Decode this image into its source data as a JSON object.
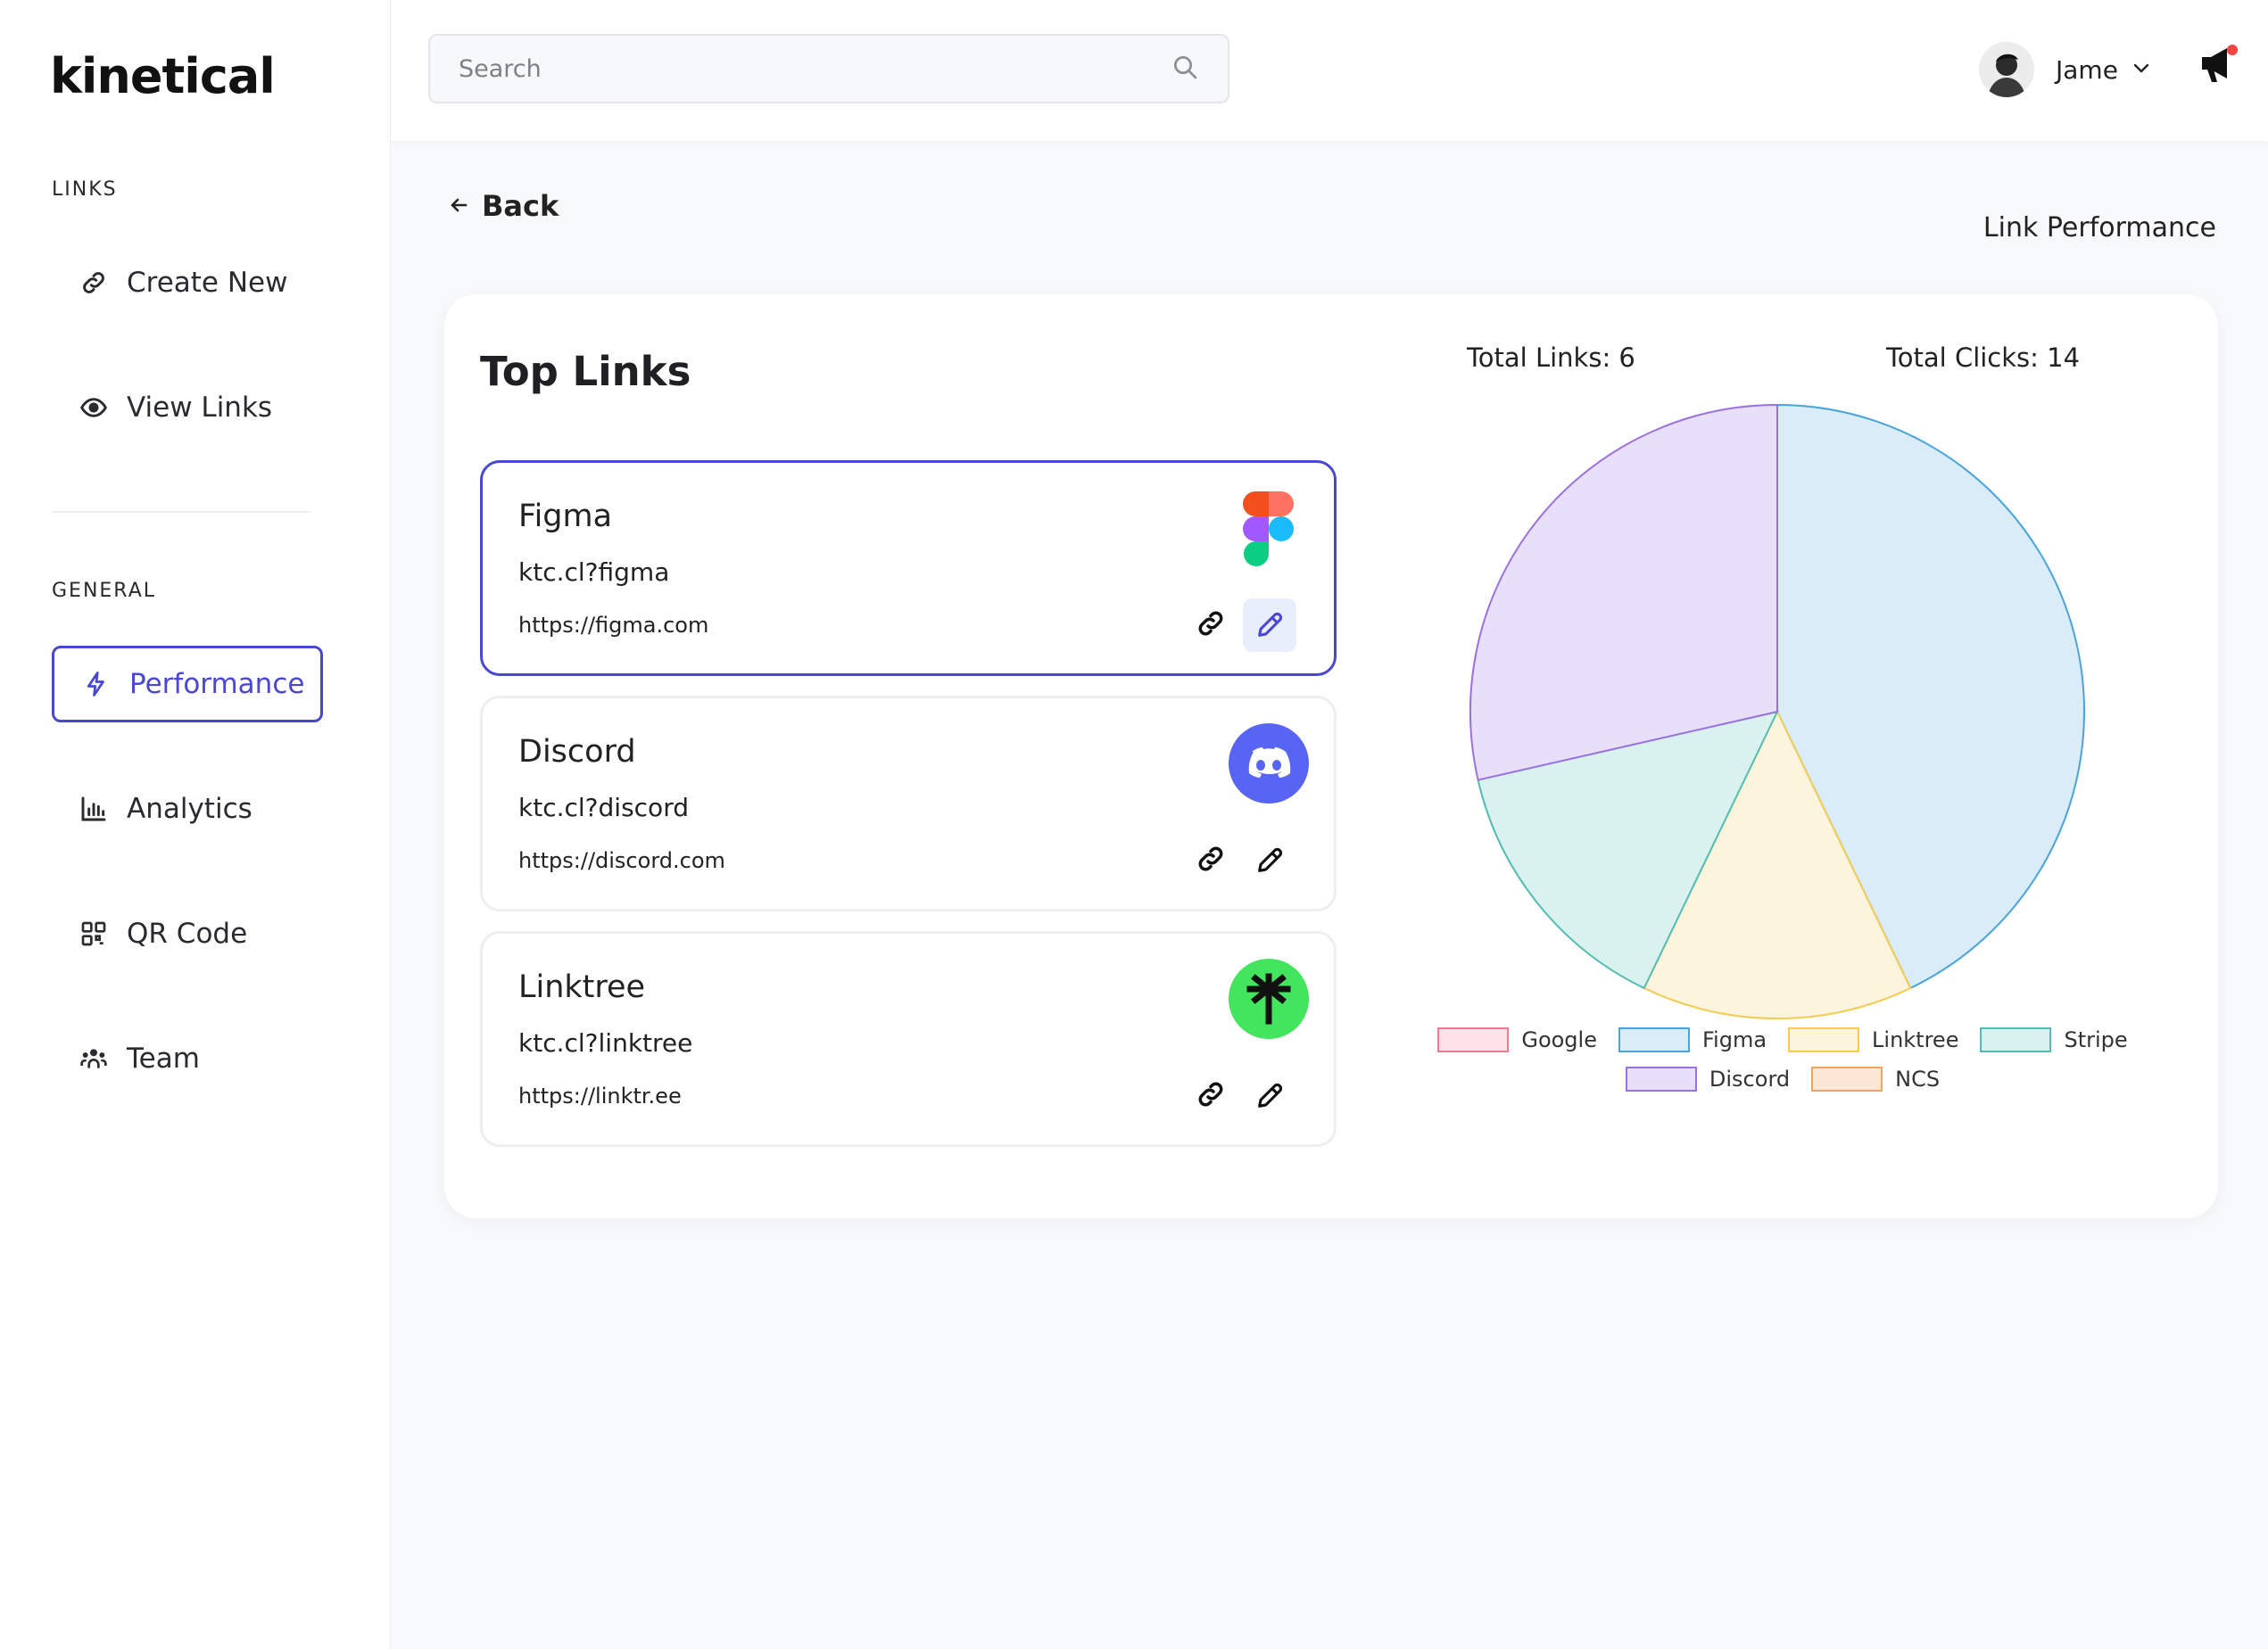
{
  "app": {
    "logo": "kinetical"
  },
  "sidebar": {
    "sections": [
      {
        "label": "LINKS"
      },
      {
        "label": "GENERAL"
      }
    ],
    "links_items": [
      {
        "label": "Create New",
        "icon": "link-icon"
      },
      {
        "label": "View Links",
        "icon": "eye-icon"
      }
    ],
    "general_items": [
      {
        "label": "Performance",
        "icon": "bolt-icon",
        "active": true
      },
      {
        "label": "Analytics",
        "icon": "bar-chart-icon"
      },
      {
        "label": "QR Code",
        "icon": "qr-code-icon"
      },
      {
        "label": "Team",
        "icon": "team-icon"
      }
    ]
  },
  "header": {
    "search": {
      "placeholder": "Search",
      "value": ""
    },
    "user": {
      "name": "Jame"
    }
  },
  "main": {
    "back_label": "Back",
    "page_label": "Link Performance",
    "card": {
      "title": "Top Links",
      "total_links": "Total Links: 6",
      "total_clicks": "Total Clicks: 14",
      "links": [
        {
          "name": "Figma",
          "short": "ktc.cl?figma",
          "url": "https://figma.com",
          "logo": "figma-icon",
          "selected": true
        },
        {
          "name": "Discord",
          "short": "ktc.cl?discord",
          "url": "https://discord.com",
          "logo": "discord-icon",
          "selected": false
        },
        {
          "name": "Linktree",
          "short": "ktc.cl?linktree",
          "url": "https://linktr.ee",
          "logo": "linktree-icon",
          "selected": false
        }
      ]
    }
  },
  "chart_data": {
    "type": "pie",
    "title": "",
    "labels": [
      "Google",
      "Figma",
      "Linktree",
      "Stripe",
      "Discord",
      "NCS"
    ],
    "values": [
      0,
      6,
      2,
      2,
      4,
      0
    ],
    "colors": {
      "Google": {
        "fill": "#fde3e8",
        "stroke": "#f07b93"
      },
      "Figma": {
        "fill": "#d9ecf8",
        "stroke": "#4aa4dc"
      },
      "Linktree": {
        "fill": "#fcf4dc",
        "stroke": "#f3cc55"
      },
      "Stripe": {
        "fill": "#daf2ef",
        "stroke": "#52bdb3"
      },
      "Discord": {
        "fill": "#e8dffb",
        "stroke": "#9a70e4"
      },
      "NCS": {
        "fill": "#fde8d8",
        "stroke": "#f3a35e"
      }
    },
    "legend_position": "bottom"
  }
}
